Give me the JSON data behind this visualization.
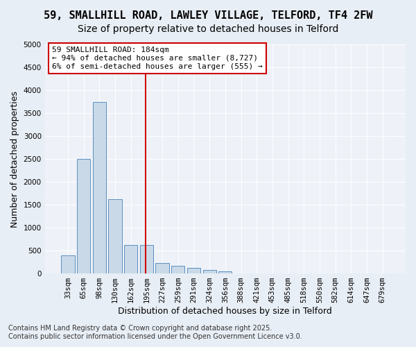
{
  "title_line1": "59, SMALLHILL ROAD, LAWLEY VILLAGE, TELFORD, TF4 2FW",
  "title_line2": "Size of property relative to detached houses in Telford",
  "xlabel": "Distribution of detached houses by size in Telford",
  "ylabel": "Number of detached properties",
  "bin_labels": [
    "33sqm",
    "65sqm",
    "98sqm",
    "130sqm",
    "162sqm",
    "195sqm",
    "227sqm",
    "259sqm",
    "291sqm",
    "324sqm",
    "356sqm",
    "388sqm",
    "421sqm",
    "453sqm",
    "485sqm",
    "518sqm",
    "550sqm",
    "582sqm",
    "614sqm",
    "647sqm",
    "679sqm"
  ],
  "bar_values": [
    390,
    2500,
    3750,
    1625,
    625,
    625,
    225,
    175,
    125,
    75,
    50,
    0,
    0,
    0,
    0,
    0,
    0,
    0,
    0,
    0,
    0
  ],
  "bar_color": "#c9d9e8",
  "bar_edge_color": "#5a8fc0",
  "vline_x": 4.92,
  "vline_color": "#cc0000",
  "annotation_line1": "59 SMALLHILL ROAD: 184sqm",
  "annotation_line2": "← 94% of detached houses are smaller (8,727)",
  "annotation_line3": "6% of semi-detached houses are larger (555) →",
  "annotation_box_color": "#ffffff",
  "annotation_box_edge": "#cc0000",
  "ylim": [
    0,
    5000
  ],
  "yticks": [
    0,
    500,
    1000,
    1500,
    2000,
    2500,
    3000,
    3500,
    4000,
    4500,
    5000
  ],
  "bg_color": "#e8eef5",
  "plot_bg_color": "#eef2f8",
  "footer_line1": "Contains HM Land Registry data © Crown copyright and database right 2025.",
  "footer_line2": "Contains public sector information licensed under the Open Government Licence v3.0.",
  "title_fontsize": 11,
  "subtitle_fontsize": 10,
  "axis_label_fontsize": 9,
  "tick_fontsize": 7.5,
  "annotation_fontsize": 8,
  "footer_fontsize": 7
}
